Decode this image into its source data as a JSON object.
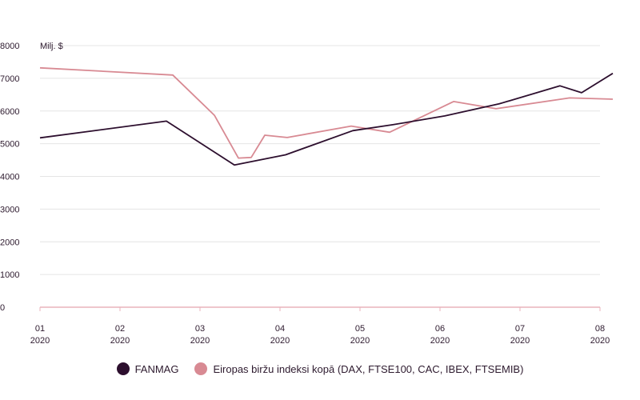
{
  "chart_data": {
    "type": "line",
    "unit_label": "Milj. $",
    "ylim": [
      0,
      8000
    ],
    "yticks": [
      0,
      1000,
      2000,
      3000,
      4000,
      5000,
      6000,
      7000,
      8000
    ],
    "xlim": [
      1,
      8.08
    ],
    "xticks": [
      {
        "pos": 1,
        "month": "01",
        "year": "2020"
      },
      {
        "pos": 2,
        "month": "02",
        "year": "2020"
      },
      {
        "pos": 3,
        "month": "03",
        "year": "2020"
      },
      {
        "pos": 4,
        "month": "04",
        "year": "2020"
      },
      {
        "pos": 5,
        "month": "05",
        "year": "2020"
      },
      {
        "pos": 6,
        "month": "06",
        "year": "2020"
      },
      {
        "pos": 7,
        "month": "07",
        "year": "2020"
      },
      {
        "pos": 8,
        "month": "08",
        "year": "2020"
      }
    ],
    "grid": true,
    "legend_position": "bottom",
    "series": [
      {
        "name": "FANMAG",
        "color": "#2d0f2e",
        "points": [
          [
            1.0,
            5180
          ],
          [
            2.58,
            5690
          ],
          [
            3.43,
            4350
          ],
          [
            4.07,
            4660
          ],
          [
            4.91,
            5400
          ],
          [
            5.41,
            5580
          ],
          [
            6.06,
            5850
          ],
          [
            6.74,
            6220
          ],
          [
            7.5,
            6770
          ],
          [
            7.77,
            6560
          ],
          [
            8.16,
            7150
          ]
        ]
      },
      {
        "name": "Eiropas biržu indeksi kopā (DAX, FTSE100, CAC, IBEX, FTSEMIB)",
        "color": "#d88a93",
        "points": [
          [
            1.0,
            7320
          ],
          [
            2.66,
            7100
          ],
          [
            3.18,
            5870
          ],
          [
            3.48,
            4560
          ],
          [
            3.64,
            4580
          ],
          [
            3.81,
            5260
          ],
          [
            4.09,
            5190
          ],
          [
            4.89,
            5540
          ],
          [
            5.37,
            5350
          ],
          [
            6.17,
            6290
          ],
          [
            6.7,
            6070
          ],
          [
            7.62,
            6400
          ],
          [
            8.16,
            6360
          ]
        ]
      }
    ]
  }
}
